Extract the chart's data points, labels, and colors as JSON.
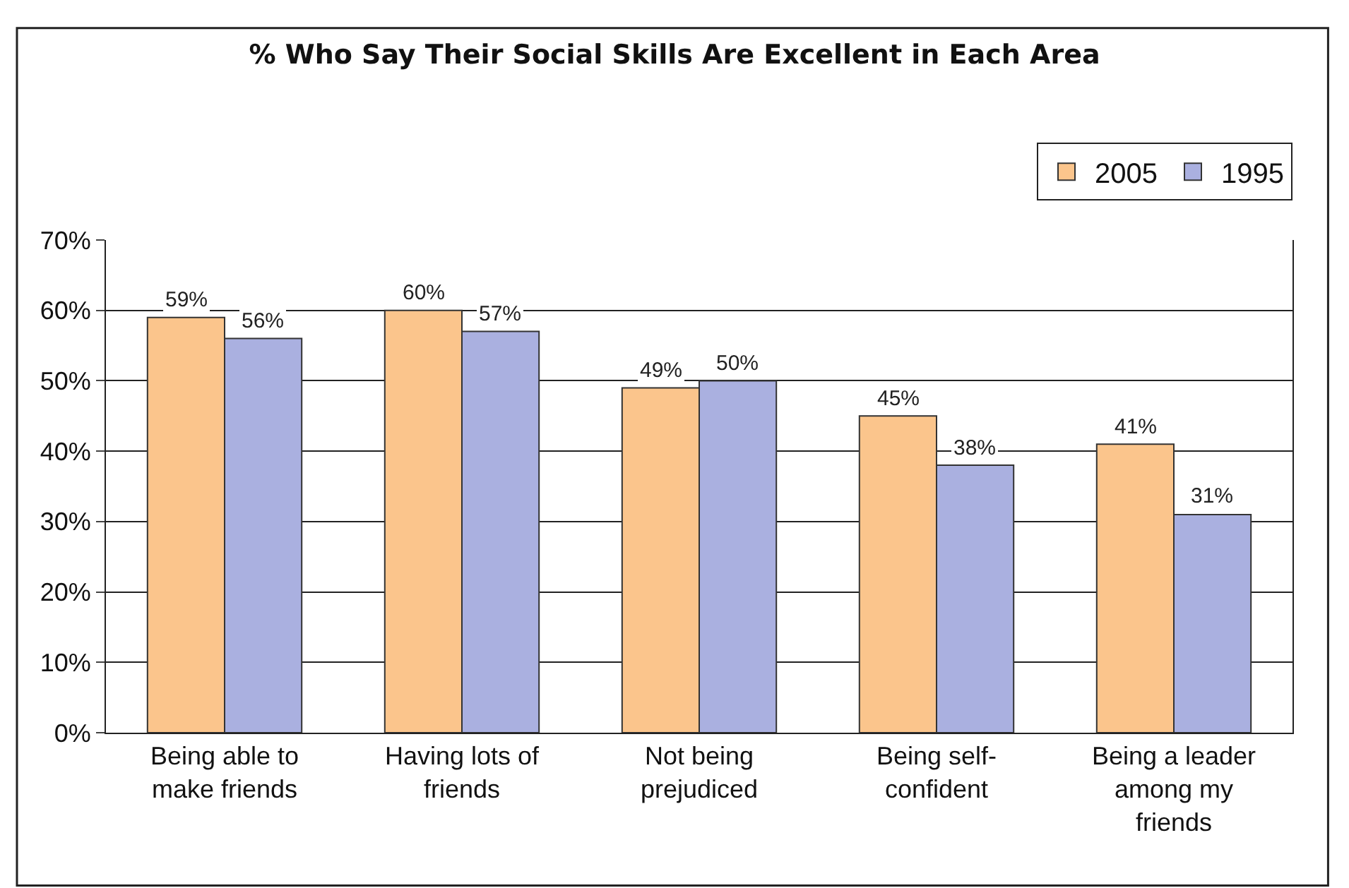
{
  "chart_data": {
    "type": "bar",
    "title": "% Who Say Their Social Skills Are Excellent in Each Area",
    "categories": [
      "Being able to make friends",
      "Having lots of friends",
      "Not being prejudiced",
      "Being self-confident",
      "Being a leader among my friends"
    ],
    "series": [
      {
        "name": "2005",
        "color": "#fbc58c",
        "values": [
          59,
          60,
          49,
          45,
          41
        ],
        "value_labels": [
          "59%",
          "60%",
          "49%",
          "45%",
          "41%"
        ]
      },
      {
        "name": "1995",
        "color": "#aab0e0",
        "values": [
          56,
          57,
          50,
          38,
          31
        ],
        "value_labels": [
          "56%",
          "57%",
          "50%",
          "38%",
          "31%"
        ]
      }
    ],
    "ylim": [
      0,
      70
    ],
    "yticks": [
      {
        "value": 0,
        "label": "0%"
      },
      {
        "value": 10,
        "label": "10%"
      },
      {
        "value": 20,
        "label": "20%"
      },
      {
        "value": 30,
        "label": "30%"
      },
      {
        "value": 40,
        "label": "40%"
      },
      {
        "value": 50,
        "label": "50%"
      },
      {
        "value": 60,
        "label": "60%"
      },
      {
        "value": 70,
        "label": "70%"
      }
    ],
    "grid": "y",
    "legend": "top right"
  }
}
